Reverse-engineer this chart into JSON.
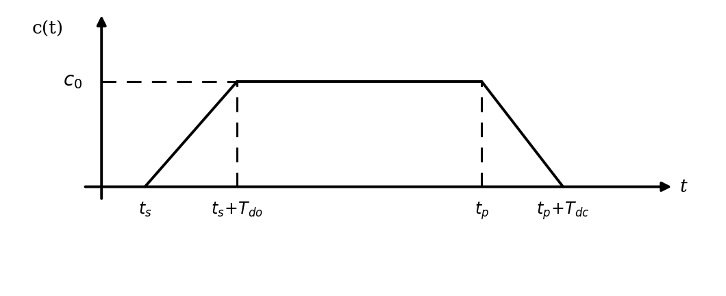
{
  "background_color": "#ffffff",
  "signal_color": "#000000",
  "dashed_color": "#000000",
  "axis_color": "#000000",
  "ts": 0.8,
  "ts_Tdo": 2.5,
  "tp": 7.0,
  "tp_Tdc": 8.5,
  "c0": 3.2,
  "xmin": -0.3,
  "xmax": 10.5,
  "ymin": -1.2,
  "ymax": 5.2,
  "ylabel": "c(t)",
  "xlabel": "t",
  "linewidth": 2.8,
  "dashed_linewidth": 2.2,
  "fontsize_axis_label": 19,
  "fontsize_tick_label": 17,
  "fontsize_c0": 20,
  "arrow_mutation_scale": 20
}
